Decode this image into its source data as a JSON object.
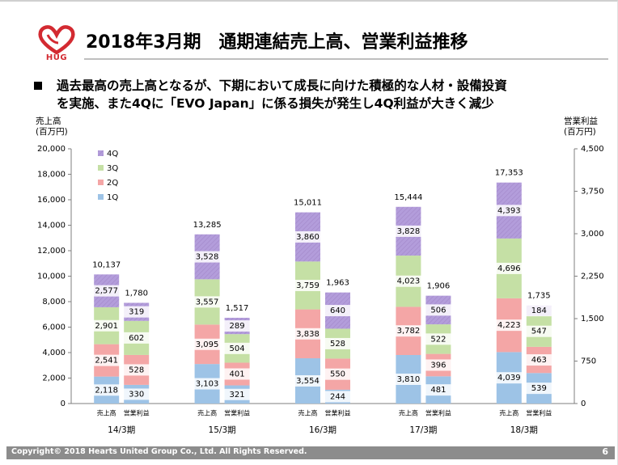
{
  "header": {
    "logo_text": "HUG",
    "title": "2018年3月期　通期連結売上高、営業利益推移"
  },
  "headline": {
    "line1": "過去最高の売上高となるが、下期において成長に向けた積極的な人材・設備投資",
    "line2": "を実施、また4Qに「EVO Japan」に係る損失が発生し4Q利益が大きく減少"
  },
  "axis_titles": {
    "left_line1": "売上高",
    "left_line2": "(百万円)",
    "right_line1": "営業利益",
    "right_line2": "(百万円)"
  },
  "footer": {
    "copyright": "Copyright© 2018 Hearts United Group Co., Ltd. All Rights Reserved.",
    "page_number": "6"
  },
  "colors": {
    "q1": "#9dc3e6",
    "q2": "#f4a6a6",
    "q3": "#c5e0a5",
    "q4": "#b39ddb",
    "logo_red": "#d32a31"
  },
  "chart_data": {
    "type": "bar",
    "stacked": true,
    "legend_position": "top-left",
    "grid": false,
    "legend": [
      "4Q",
      "3Q",
      "2Q",
      "1Q"
    ],
    "periods": [
      "14/3期",
      "15/3期",
      "16/3期",
      "17/3期",
      "18/3期"
    ],
    "bar_labels": [
      "売上高",
      "営業利益"
    ],
    "left_axis": {
      "ylim": [
        0,
        20000
      ],
      "ticks": [
        "0",
        "2,000",
        "4,000",
        "6,000",
        "8,000",
        "10,000",
        "12,000",
        "14,000",
        "16,000",
        "18,000",
        "20,000"
      ]
    },
    "right_axis": {
      "ylim": [
        0,
        4500
      ],
      "ticks": [
        "0",
        "750",
        "1,500",
        "2,250",
        "3,000",
        "3,750",
        "4,500"
      ]
    },
    "sales": {
      "series": [
        {
          "name": "1Q",
          "values": [
            2118,
            3103,
            3554,
            3810,
            4039
          ]
        },
        {
          "name": "2Q",
          "values": [
            2541,
            3095,
            3838,
            3782,
            4223
          ]
        },
        {
          "name": "3Q",
          "values": [
            2901,
            3557,
            3759,
            4023,
            4696
          ]
        },
        {
          "name": "4Q",
          "values": [
            2577,
            3528,
            3860,
            3828,
            4393
          ]
        }
      ],
      "totals": [
        10137,
        13285,
        15011,
        15444,
        17353
      ],
      "labels": {
        "1Q": [
          "2,118",
          "3,103",
          "3,554",
          "3,810",
          "4,039"
        ],
        "2Q": [
          "2,541",
          "3,095",
          "3,838",
          "3,782",
          "4,223"
        ],
        "3Q": [
          "2,901",
          "3,557",
          "3,759",
          "4,023",
          "4,696"
        ],
        "4Q": [
          "2,577",
          "3,528",
          "3,860",
          "3,828",
          "4,393"
        ],
        "total": [
          "10,137",
          "13,285",
          "15,011",
          "15,444",
          "17,353"
        ]
      }
    },
    "operating_profit": {
      "series": [
        {
          "name": "1Q",
          "values": [
            330,
            321,
            244,
            481,
            539
          ]
        },
        {
          "name": "2Q",
          "values": [
            528,
            401,
            550,
            396,
            463
          ]
        },
        {
          "name": "3Q",
          "values": [
            602,
            504,
            528,
            522,
            547
          ]
        },
        {
          "name": "4Q",
          "values": [
            319,
            289,
            640,
            506,
            184
          ]
        }
      ],
      "totals": [
        1780,
        1517,
        1963,
        1906,
        1735
      ],
      "labels": {
        "1Q": [
          "330",
          "321",
          "244",
          "481",
          "539"
        ],
        "2Q": [
          "528",
          "401",
          "550",
          "396",
          "463"
        ],
        "3Q": [
          "602",
          "504",
          "528",
          "522",
          "547"
        ],
        "4Q": [
          "319",
          "289",
          "640",
          "506",
          "184"
        ],
        "total": [
          "1,780",
          "1,517",
          "1,963",
          "1,906",
          "1,735"
        ]
      }
    }
  }
}
